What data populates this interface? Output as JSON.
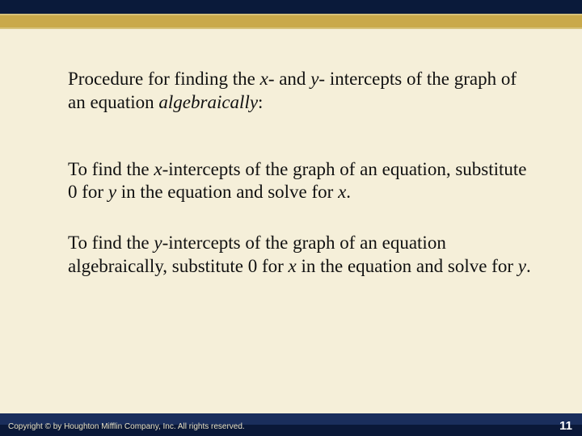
{
  "colors": {
    "background": "#f5efd9",
    "topband_dark": "#0a1a3a",
    "topband_gold": "#c9a94a",
    "bottomband_light": "#1a2e5c",
    "bottomband_dark": "#0a1838",
    "text": "#111111",
    "footer_text": "#e8e2c7",
    "pagenum_text": "#ffffff"
  },
  "typography": {
    "body_font": "Times New Roman",
    "body_size_pt": 17,
    "footer_font": "Arial",
    "footer_size_pt": 8,
    "pagenum_size_pt": 11
  },
  "heading": {
    "pre1": "Procedure for finding the ",
    "x": "x",
    "mid1": "- and ",
    "y": "y",
    "mid2": "- intercepts of the graph of an equation ",
    "alg": "algebraically",
    "post": ":"
  },
  "p1": {
    "pre1": "To find the ",
    "x": "x",
    "t2": "-intercepts of the graph of an equation, substitute 0 for ",
    "y": "y",
    "t3": " in the equation and solve for ",
    "x2": "x",
    "t4": "."
  },
  "p2": {
    "pre1": "To find the ",
    "y": "y",
    "t2": "-intercepts of the graph of an equation algebraically, substitute 0 for ",
    "x": "x",
    "t3": " in the equation and solve for ",
    "y2": "y",
    "t4": "."
  },
  "footer": {
    "copyright": "Copyright © by Houghton Mifflin Company, Inc. All rights reserved.",
    "page": "11"
  }
}
